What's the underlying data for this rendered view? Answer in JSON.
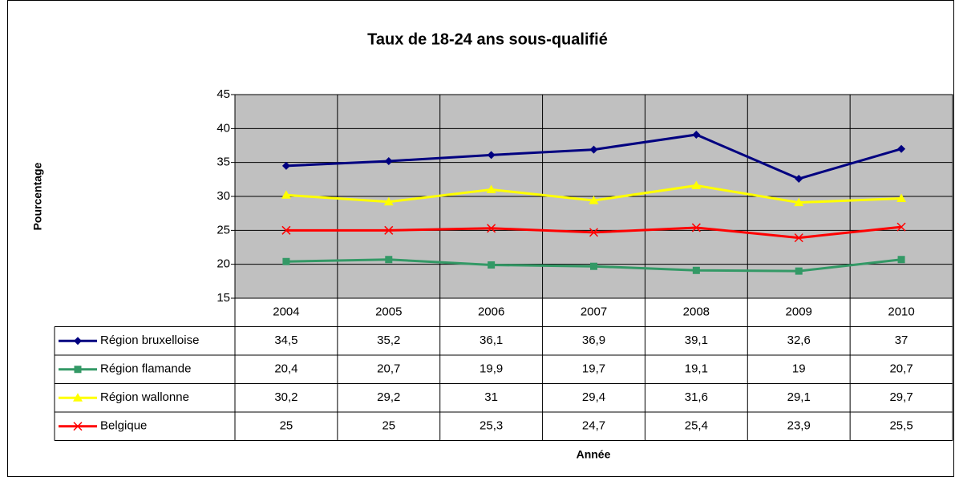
{
  "chart_data": {
    "type": "line",
    "title": "Taux de 18-24 ans sous-qualifié",
    "y_label": "Pourcentage",
    "x_label": "Année",
    "categories": [
      "2004",
      "2005",
      "2006",
      "2007",
      "2008",
      "2009",
      "2010"
    ],
    "ylim": [
      15,
      45
    ],
    "yticks": [
      15,
      20,
      25,
      30,
      35,
      40,
      45
    ],
    "grid": true,
    "series": [
      {
        "name": "Région bruxelloise",
        "color": "#000080",
        "marker": "diamond",
        "values": [
          34.5,
          35.2,
          36.1,
          36.9,
          39.1,
          32.6,
          37
        ],
        "value_labels": [
          "34,5",
          "35,2",
          "36,1",
          "36,9",
          "39,1",
          "32,6",
          "37"
        ]
      },
      {
        "name": "Région flamande",
        "color": "#339966",
        "marker": "square",
        "values": [
          20.4,
          20.7,
          19.9,
          19.7,
          19.1,
          19,
          20.7
        ],
        "value_labels": [
          "20,4",
          "20,7",
          "19,9",
          "19,7",
          "19,1",
          "19",
          "20,7"
        ]
      },
      {
        "name": "Région wallonne",
        "color": "#ffff00",
        "marker": "triangle",
        "values": [
          30.2,
          29.2,
          31,
          29.4,
          31.6,
          29.1,
          29.7
        ],
        "value_labels": [
          "30,2",
          "29,2",
          "31",
          "29,4",
          "31,6",
          "29,1",
          "29,7"
        ]
      },
      {
        "name": "Belgique",
        "color": "#ff0000",
        "marker": "x",
        "values": [
          25,
          25,
          25.3,
          24.7,
          25.4,
          23.9,
          25.5
        ],
        "value_labels": [
          "25",
          "25",
          "25,3",
          "24,7",
          "25,4",
          "23,9",
          "25,5"
        ]
      }
    ]
  }
}
